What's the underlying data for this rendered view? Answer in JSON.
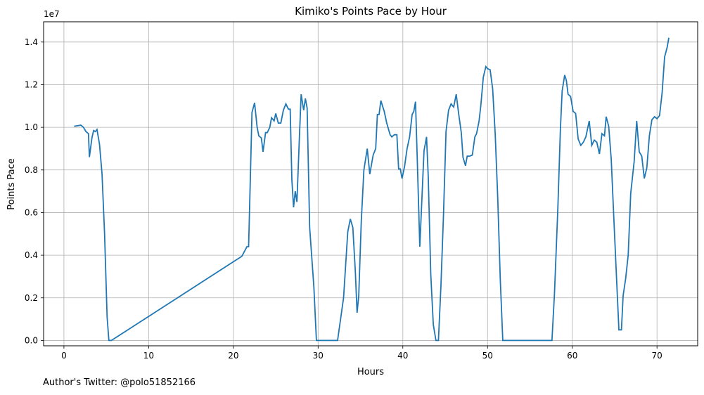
{
  "chart_data": {
    "type": "line",
    "title": "Kimiko's Points Pace by Hour",
    "xlabel": "Hours",
    "ylabel": "Points Pace",
    "y_scale_label": "1e7",
    "xlim": [
      -2.4,
      74.8
    ],
    "ylim": [
      -7.5,
      14.95
    ],
    "y_unit_multiplier": 10000000.0,
    "x_ticks": [
      0,
      10,
      20,
      30,
      40,
      50,
      60,
      70
    ],
    "y_ticks": [
      0.0,
      0.2,
      0.4,
      0.6,
      0.8,
      1.0,
      1.2,
      1.4
    ],
    "y_tick_labels": [
      "0.0",
      "0.2",
      "0.4",
      "0.6",
      "0.8",
      "1.0",
      "1.2",
      "1.4"
    ],
    "grid": true,
    "series": [
      {
        "color": "#1f77b4",
        "x": [
          1.2,
          2.0,
          2.3,
          2.6,
          2.9,
          3.0,
          3.3,
          3.5,
          3.7,
          3.9,
          4.2,
          4.5,
          4.8,
          5.1,
          5.3,
          5.6,
          21.0,
          21.6,
          21.8,
          22.2,
          22.5,
          22.8,
          23.0,
          23.3,
          23.5,
          23.8,
          24.0,
          24.3,
          24.5,
          24.8,
          25.0,
          25.3,
          25.6,
          25.9,
          26.2,
          26.5,
          26.7,
          26.9,
          27.1,
          27.3,
          27.5,
          27.8,
          28.0,
          28.3,
          28.5,
          28.7,
          29.0,
          29.5,
          29.8,
          30.0,
          32.3,
          33.0,
          33.5,
          33.8,
          34.1,
          34.4,
          34.6,
          34.8,
          35.1,
          35.4,
          35.8,
          36.1,
          36.5,
          36.8,
          37.0,
          37.2,
          37.4,
          37.8,
          38.1,
          38.5,
          38.7,
          39.0,
          39.3,
          39.5,
          39.7,
          39.9,
          40.2,
          40.5,
          40.8,
          41.1,
          41.3,
          41.5,
          41.7,
          42.0,
          42.2,
          42.5,
          42.8,
          43.0,
          43.3,
          43.6,
          43.9,
          44.2,
          44.5,
          44.8,
          45.1,
          45.4,
          45.7,
          46.0,
          46.3,
          46.6,
          46.9,
          47.1,
          47.4,
          47.6,
          47.9,
          48.2,
          48.5,
          48.7,
          49.0,
          49.2,
          49.5,
          49.8,
          50.0,
          50.3,
          50.6,
          50.9,
          51.2,
          51.5,
          51.8,
          57.6,
          57.9,
          58.3,
          58.6,
          58.8,
          59.1,
          59.3,
          59.5,
          59.8,
          60.1,
          60.4,
          60.7,
          61.0,
          61.3,
          61.6,
          62.0,
          62.3,
          62.6,
          62.9,
          63.2,
          63.5,
          63.8,
          64.0,
          64.3,
          64.6,
          64.9,
          65.2,
          65.5,
          65.8,
          66.0,
          66.3,
          66.6,
          66.9,
          67.3,
          67.6,
          67.9,
          68.2,
          68.5,
          68.8,
          69.1,
          69.4,
          69.7,
          70.0,
          70.3,
          70.6,
          70.9,
          71.2,
          71.4
        ],
        "y": [
          1.005,
          1.01,
          1.0,
          0.98,
          0.97,
          0.86,
          0.95,
          0.985,
          0.98,
          0.99,
          0.92,
          0.78,
          0.5,
          0.11,
          0.0,
          0.0,
          0.395,
          0.44,
          0.44,
          1.07,
          1.115,
          1.0,
          0.96,
          0.95,
          0.885,
          0.975,
          0.975,
          1.0,
          1.045,
          1.03,
          1.065,
          1.02,
          1.02,
          1.08,
          1.11,
          1.085,
          1.085,
          0.755,
          0.625,
          0.7,
          0.65,
          0.96,
          1.155,
          1.08,
          1.135,
          1.09,
          0.53,
          0.25,
          0.0,
          0.0,
          0.0,
          0.2,
          0.51,
          0.57,
          0.53,
          0.32,
          0.13,
          0.21,
          0.56,
          0.8,
          0.9,
          0.78,
          0.87,
          0.9,
          1.06,
          1.06,
          1.125,
          1.075,
          1.02,
          0.965,
          0.955,
          0.965,
          0.965,
          0.805,
          0.805,
          0.76,
          0.815,
          0.9,
          0.955,
          1.06,
          1.075,
          1.12,
          0.85,
          0.44,
          0.62,
          0.89,
          0.955,
          0.77,
          0.31,
          0.075,
          0.0,
          0.0,
          0.26,
          0.59,
          0.98,
          1.08,
          1.11,
          1.095,
          1.155,
          1.06,
          0.975,
          0.86,
          0.82,
          0.865,
          0.865,
          0.87,
          0.955,
          0.97,
          1.03,
          1.1,
          1.235,
          1.285,
          1.275,
          1.27,
          1.18,
          0.97,
          0.67,
          0.29,
          0.0,
          0.0,
          0.22,
          0.62,
          0.99,
          1.17,
          1.245,
          1.22,
          1.155,
          1.145,
          1.075,
          1.065,
          0.945,
          0.915,
          0.93,
          0.955,
          1.03,
          0.915,
          0.94,
          0.93,
          0.875,
          0.97,
          0.96,
          1.05,
          1.005,
          0.85,
          0.58,
          0.31,
          0.05,
          0.05,
          0.21,
          0.29,
          0.4,
          0.69,
          0.84,
          1.03,
          0.885,
          0.865,
          0.76,
          0.81,
          0.96,
          1.035,
          1.05,
          1.04,
          1.055,
          1.16,
          1.33,
          1.375,
          1.42
        ]
      }
    ]
  },
  "footer": {
    "text": "Author's Twitter: @polo51852166"
  }
}
